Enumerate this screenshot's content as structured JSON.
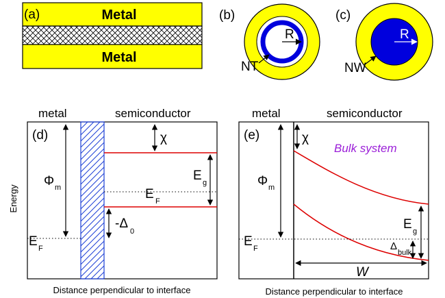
{
  "panels": {
    "a": {
      "label": "(a)",
      "top_layer": "Metal",
      "bottom_layer": "Metal"
    },
    "b": {
      "label": "(b)",
      "radius_label": "R",
      "pointer_label": "NT"
    },
    "c": {
      "label": "(c)",
      "radius_label": "R",
      "pointer_label": "NW"
    },
    "d": {
      "label": "(d)",
      "metal_heading": "metal",
      "semiconductor_heading": "semiconductor",
      "chi": "χ",
      "phi": "Φ",
      "phi_sub": "m",
      "eg": "E",
      "eg_sub": "g",
      "ef_semi": "E",
      "ef_semi_sub": "F",
      "ef_metal": "E",
      "ef_metal_sub": "F",
      "delta": "-Δ",
      "delta_sub": "0",
      "xlabel": "Distance perpendicular to interface",
      "ylabel": "Energy"
    },
    "e": {
      "label": "(e)",
      "metal_heading": "metal",
      "semiconductor_heading": "semiconductor",
      "chi": "χ",
      "bulk_label": "Bulk system",
      "phi": "Φ",
      "phi_sub": "m",
      "eg": "E",
      "eg_sub": "g",
      "ef_metal": "E",
      "ef_metal_sub": "F",
      "delta": "Δ",
      "delta_sub": "bulk",
      "width_label": "W",
      "xlabel": "Distance perpendicular to interface"
    }
  },
  "colors": {
    "metal_yellow": "#ffff00",
    "nanostructure_blue": "#0000dd",
    "band_red": "#dd0000",
    "label_purple": "#9b1fd8"
  }
}
